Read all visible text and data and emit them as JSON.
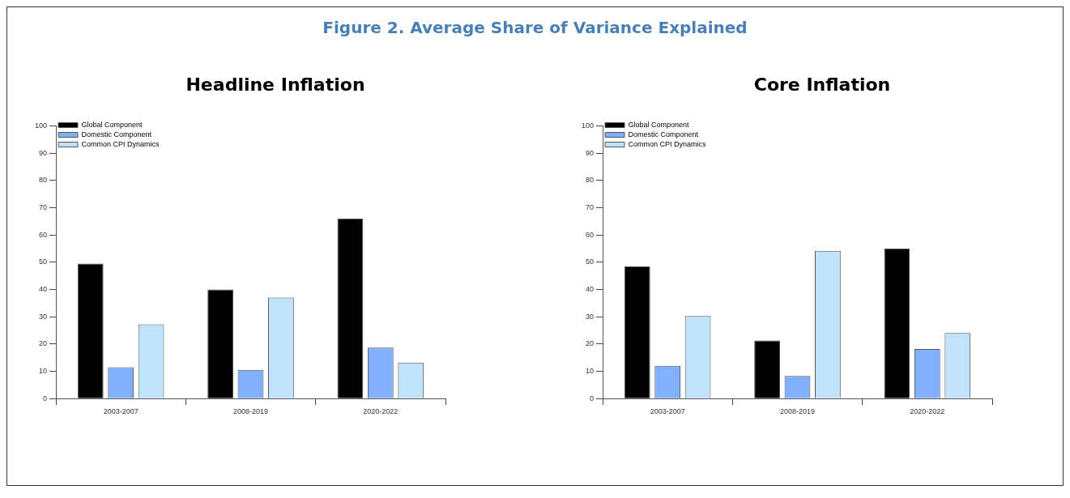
{
  "chart_data": [
    {
      "type": "bar",
      "title": "Headline Inflation",
      "annotations": [
        "Figure 2. Average Share of Variance Explained"
      ],
      "categories": [
        "2003-2007",
        "2008-2019",
        "2020-2022"
      ],
      "series": [
        {
          "name": "Global Component",
          "color": "#000000",
          "values": [
            49.5,
            40,
            66
          ]
        },
        {
          "name": "Domestic Component",
          "color": "#80b0ff",
          "values": [
            11.5,
            10.5,
            18.7
          ]
        },
        {
          "name": "Common CPI Dynamics",
          "color": "#bfe3fb",
          "values": [
            27.2,
            37,
            13.2
          ]
        }
      ],
      "ylim": [
        0,
        100
      ],
      "yticks": [
        0,
        10,
        20,
        30,
        40,
        50,
        60,
        70,
        80,
        90,
        100
      ],
      "grid": false,
      "legend": "top left"
    },
    {
      "type": "bar",
      "title": "Core Inflation",
      "categories": [
        "2003-2007",
        "2008-2019",
        "2020-2022"
      ],
      "series": [
        {
          "name": "Global Component",
          "color": "#000000",
          "values": [
            48.5,
            21.3,
            55
          ]
        },
        {
          "name": "Domestic Component",
          "color": "#80b0ff",
          "values": [
            12,
            8.3,
            18.2
          ]
        },
        {
          "name": "Common CPI Dynamics",
          "color": "#bfe3fb",
          "values": [
            30.3,
            54.2,
            24
          ]
        }
      ],
      "ylim": [
        0,
        100
      ],
      "yticks": [
        0,
        10,
        20,
        30,
        40,
        50,
        60,
        70,
        80,
        90,
        100
      ],
      "grid": false,
      "legend": "top left"
    }
  ]
}
